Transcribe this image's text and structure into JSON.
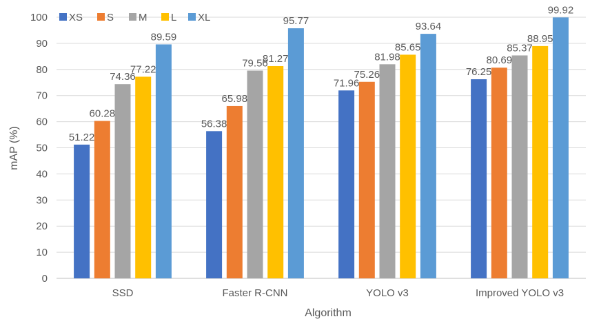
{
  "chart_data": {
    "type": "bar",
    "title": "",
    "xlabel": "Algorithm",
    "ylabel": "mAP (%)",
    "ylim": [
      0,
      100
    ],
    "yticks": [
      0,
      10,
      20,
      30,
      40,
      50,
      60,
      70,
      80,
      90,
      100
    ],
    "grid": true,
    "legend_position": "top-left",
    "categories": [
      "SSD",
      "Faster R-CNN",
      "YOLO v3",
      "Improved YOLO v3"
    ],
    "series": [
      {
        "name": "XS",
        "color": "#4472c4",
        "values": [
          51.22,
          56.38,
          71.96,
          76.25
        ]
      },
      {
        "name": "S",
        "color": "#ed7d31",
        "values": [
          60.28,
          65.98,
          75.26,
          80.69
        ]
      },
      {
        "name": "M",
        "color": "#a5a5a5",
        "values": [
          74.36,
          79.56,
          81.98,
          85.37
        ]
      },
      {
        "name": "L",
        "color": "#ffc000",
        "values": [
          77.22,
          81.27,
          85.65,
          88.95
        ]
      },
      {
        "name": "XL",
        "color": "#5b9bd5",
        "values": [
          89.59,
          95.77,
          93.64,
          99.92
        ]
      }
    ]
  }
}
